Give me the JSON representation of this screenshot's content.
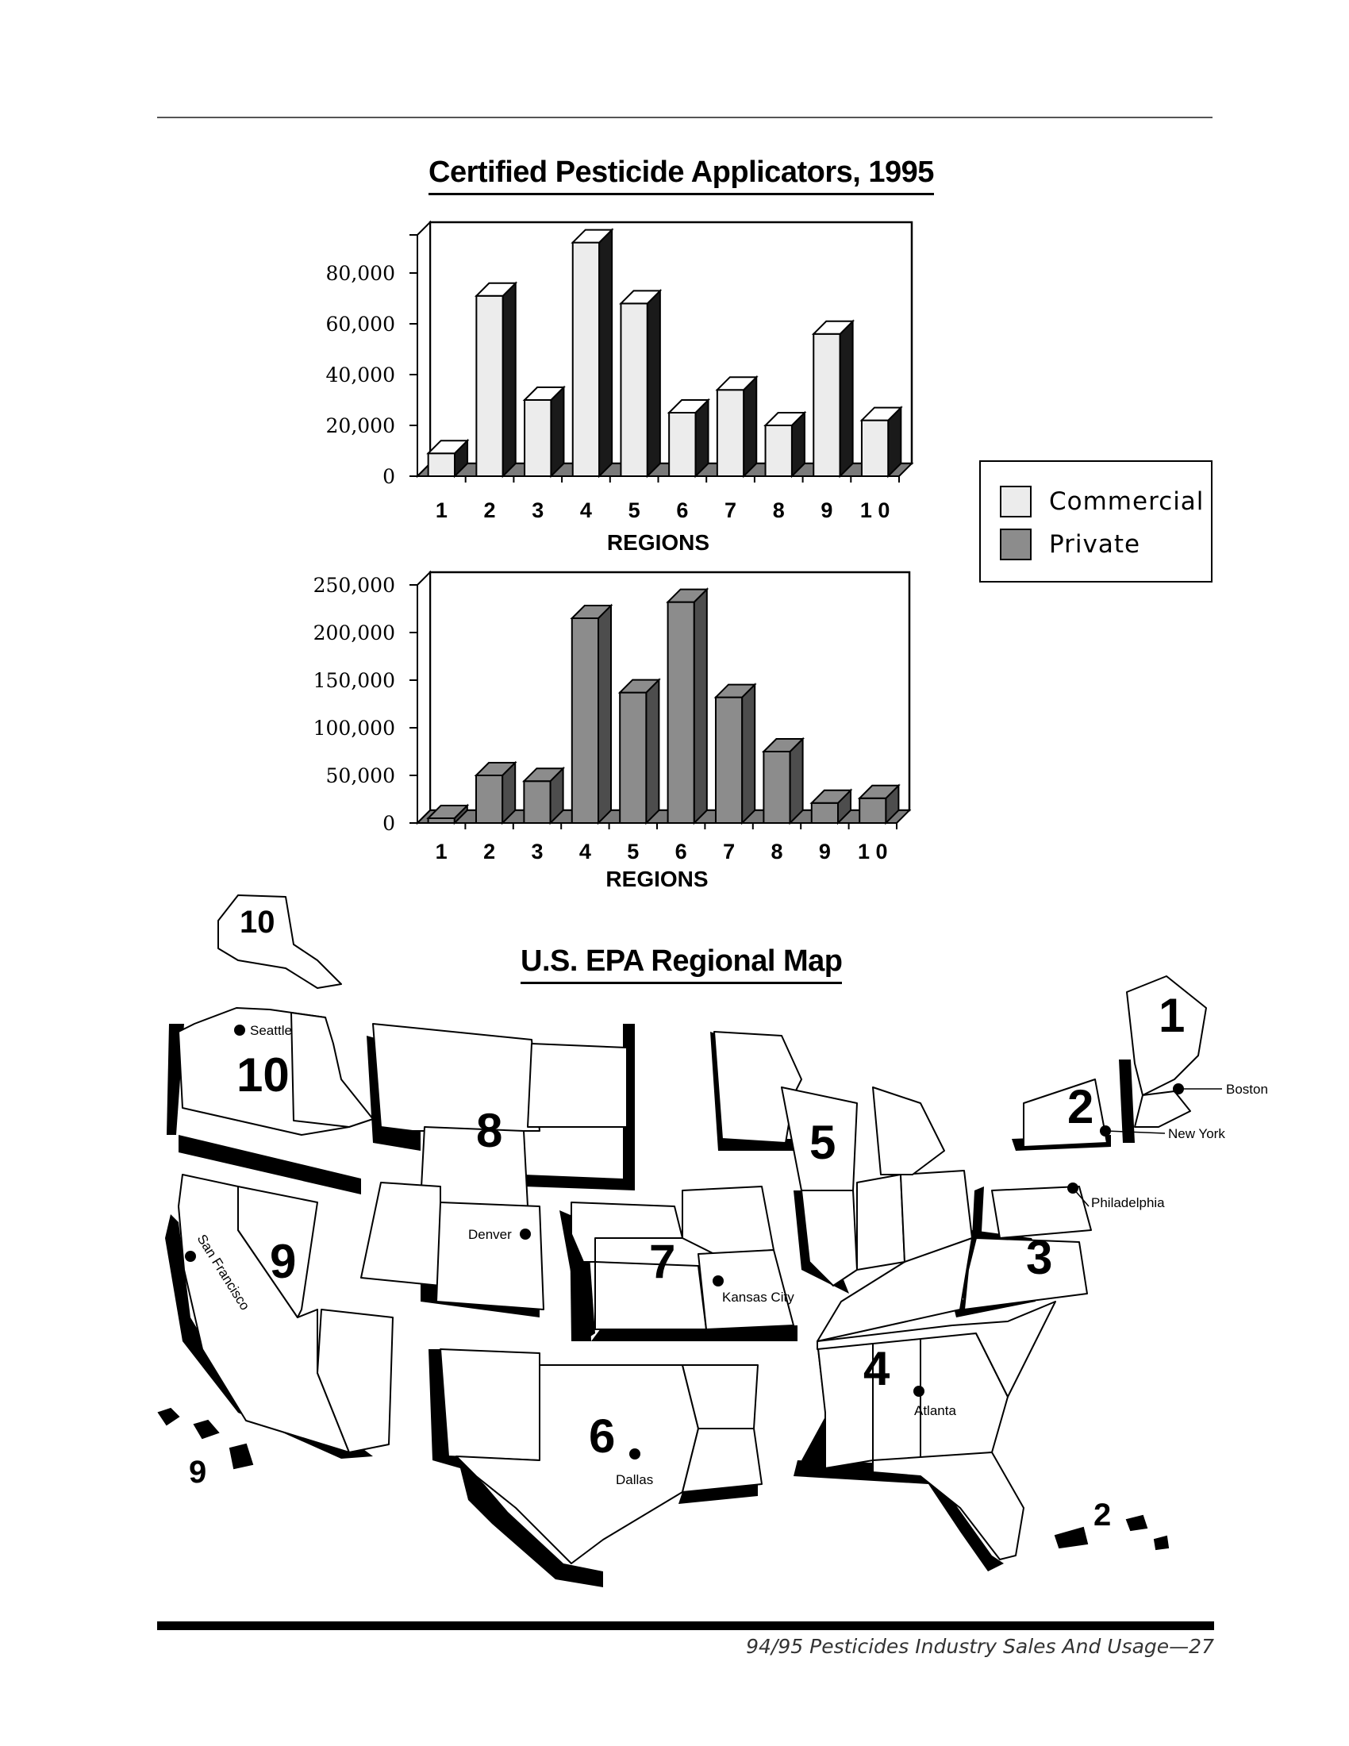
{
  "title": "Certified Pesticide Applicators, 1995",
  "map_title": "U.S. EPA Regional Map",
  "footer": "94/95 Pesticides Industry Sales And Usage—27",
  "legend": [
    {
      "label": "Commercial",
      "color": "#ececec"
    },
    {
      "label": "Private",
      "color": "#8c8c8c"
    }
  ],
  "chart_data": [
    {
      "type": "bar",
      "series_name": "Commercial",
      "categories": [
        "1",
        "2",
        "3",
        "4",
        "5",
        "6",
        "7",
        "8",
        "9",
        "10"
      ],
      "category_labels": [
        "1",
        "2",
        "3",
        "4",
        "5",
        "6",
        "7",
        "8",
        "9",
        "1 0"
      ],
      "values": [
        9000,
        71000,
        30000,
        92000,
        68000,
        25000,
        34000,
        20000,
        56000,
        22000
      ],
      "xlabel": "REGIONS",
      "ylabel": "",
      "ylim": [
        0,
        95000
      ],
      "yticks": [
        0,
        20000,
        40000,
        60000,
        80000
      ],
      "ytick_labels": [
        "0",
        "20,000",
        "40,000",
        "60,000",
        "80,000"
      ],
      "color": "#ececec",
      "grid": false
    },
    {
      "type": "bar",
      "series_name": "Private",
      "categories": [
        "1",
        "2",
        "3",
        "4",
        "5",
        "6",
        "7",
        "8",
        "9",
        "10"
      ],
      "category_labels": [
        "1",
        "2",
        "3",
        "4",
        "5",
        "6",
        "7",
        "8",
        "9",
        "1 0"
      ],
      "values": [
        5000,
        50000,
        44000,
        215000,
        137000,
        232000,
        132000,
        75000,
        21000,
        26000
      ],
      "xlabel": "REGIONS",
      "ylabel": "",
      "ylim": [
        0,
        250000
      ],
      "yticks": [
        0,
        50000,
        100000,
        150000,
        200000,
        250000
      ],
      "ytick_labels": [
        "0",
        "50,000",
        "100,000",
        "150,000",
        "200,000",
        "250,000"
      ],
      "color": "#8c8c8c",
      "grid": false
    }
  ],
  "map": {
    "region_labels": [
      "1",
      "2",
      "3",
      "4",
      "5",
      "6",
      "7",
      "8",
      "9",
      "10",
      "10",
      "9",
      "2"
    ],
    "cities": [
      "Seattle",
      "San Francisco",
      "Denver",
      "Kansas City",
      "Dallas",
      "Atlanta",
      "Philadelphia",
      "New York",
      "Boston"
    ]
  }
}
